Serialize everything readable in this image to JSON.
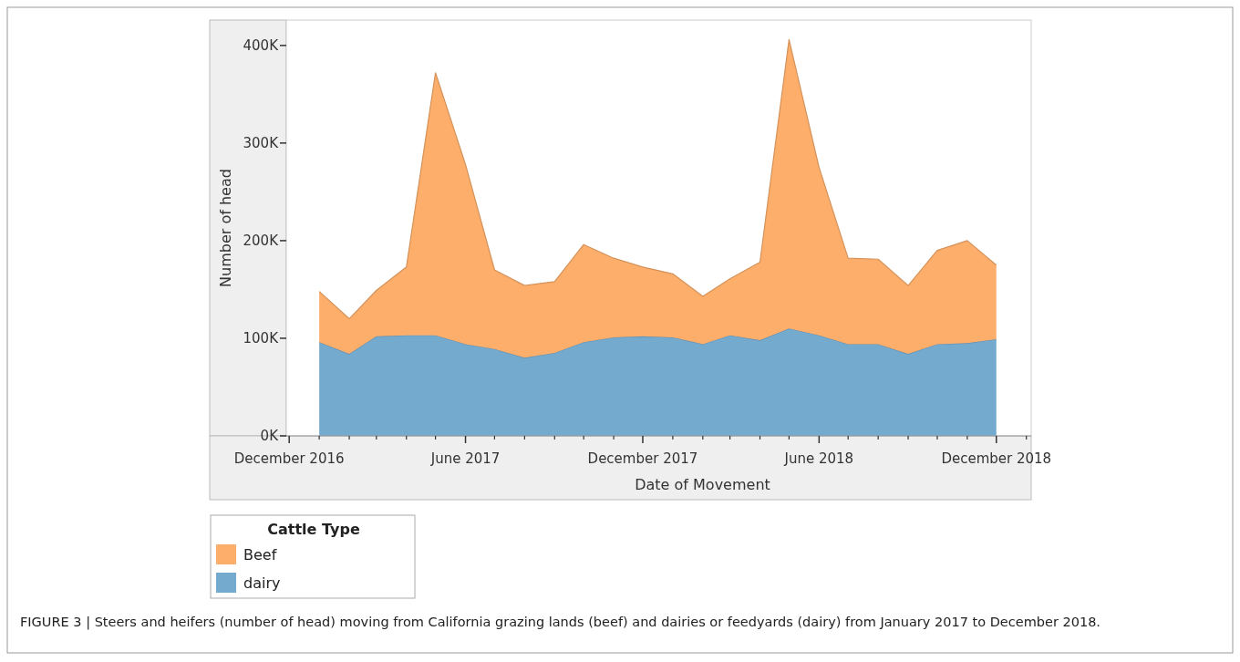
{
  "chart_data": {
    "type": "area",
    "stacked": true,
    "xlabel": "Date of Movement",
    "ylabel": "Number of head",
    "legend_title": "Cattle Type",
    "legend": "bottom left",
    "x": [
      "2017-01",
      "2017-02",
      "2017-03",
      "2017-04",
      "2017-05",
      "2017-06",
      "2017-07",
      "2017-08",
      "2017-09",
      "2017-10",
      "2017-11",
      "2017-12",
      "2018-01",
      "2018-02",
      "2018-03",
      "2018-04",
      "2018-05",
      "2018-06",
      "2018-07",
      "2018-08",
      "2018-09",
      "2018-10",
      "2018-11",
      "2018-12"
    ],
    "series": [
      {
        "name": "dairy",
        "color": "#75aacf",
        "values": [
          96000,
          84000,
          102000,
          103000,
          103000,
          94000,
          89000,
          80000,
          85000,
          96000,
          101000,
          102000,
          101000,
          94000,
          103000,
          98000,
          110000,
          103000,
          94000,
          94000,
          84000,
          94000,
          95000,
          99000
        ]
      },
      {
        "name": "Beef",
        "color": "#fdae6b",
        "values": [
          52000,
          36000,
          47000,
          70000,
          269000,
          184000,
          81000,
          74000,
          73000,
          100000,
          81000,
          71000,
          65000,
          49000,
          58000,
          80000,
          296000,
          172000,
          88000,
          87000,
          70000,
          96000,
          105000,
          76000
        ]
      }
    ],
    "xlim": [
      "2016-11-28",
      "2019-01-06"
    ],
    "ylim": [
      0,
      426000
    ],
    "xticks": [
      {
        "value": "2016-12",
        "label": "December 2016"
      },
      {
        "value": "2017-01",
        "label": null
      },
      {
        "value": "2017-02",
        "label": null
      },
      {
        "value": "2017-03",
        "label": null
      },
      {
        "value": "2017-04",
        "label": null
      },
      {
        "value": "2017-05",
        "label": null
      },
      {
        "value": "2017-06",
        "label": "June 2017"
      },
      {
        "value": "2017-07",
        "label": null
      },
      {
        "value": "2017-08",
        "label": null
      },
      {
        "value": "2017-09",
        "label": null
      },
      {
        "value": "2017-10",
        "label": null
      },
      {
        "value": "2017-11",
        "label": null
      },
      {
        "value": "2017-12",
        "label": "December 2017"
      },
      {
        "value": "2018-01",
        "label": null
      },
      {
        "value": "2018-02",
        "label": null
      },
      {
        "value": "2018-03",
        "label": null
      },
      {
        "value": "2018-04",
        "label": null
      },
      {
        "value": "2018-05",
        "label": null
      },
      {
        "value": "2018-06",
        "label": "June 2018"
      },
      {
        "value": "2018-07",
        "label": null
      },
      {
        "value": "2018-08",
        "label": null
      },
      {
        "value": "2018-09",
        "label": null
      },
      {
        "value": "2018-10",
        "label": null
      },
      {
        "value": "2018-11",
        "label": null
      },
      {
        "value": "2018-12",
        "label": "December 2018"
      },
      {
        "value": "2019-01",
        "label": null
      }
    ],
    "yticks": [
      {
        "value": 0,
        "label": "0K"
      },
      {
        "value": 100000,
        "label": "100K"
      },
      {
        "value": 200000,
        "label": "200K"
      },
      {
        "value": 300000,
        "label": "300K"
      },
      {
        "value": 400000,
        "label": "400K"
      }
    ],
    "annotations": [
      "FIGURE 3 | Steers and heifers (number of head) moving from California grazing lands (beef) and dairies or feedyards (dairy) from January 2017 to December 2018."
    ]
  }
}
